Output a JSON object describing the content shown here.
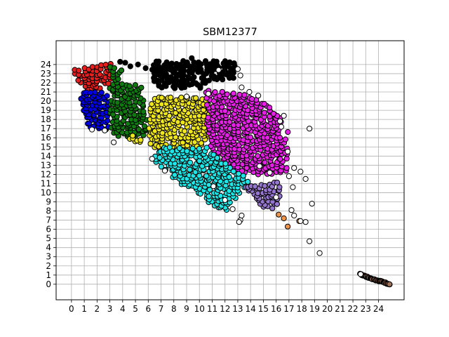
{
  "chart_data": {
    "type": "scatter",
    "title": "SBM12377",
    "xlabel": "",
    "ylabel": "",
    "xlim": [
      -1.2,
      26.0
    ],
    "ylim": [
      -1.7,
      26.6
    ],
    "x_ticks": [
      "0",
      "1",
      "2",
      "3",
      "4",
      "5",
      "6",
      "7",
      "8",
      "9",
      "10",
      "11",
      "12",
      "13",
      "14",
      "15",
      "16",
      "17",
      "18",
      "19",
      "20",
      "21",
      "22",
      "23",
      "24"
    ],
    "y_ticks": [
      "0",
      "1",
      "2",
      "3",
      "4",
      "5",
      "6",
      "7",
      "8",
      "9",
      "10",
      "11",
      "12",
      "13",
      "14",
      "15",
      "16",
      "17",
      "18",
      "19",
      "20",
      "21",
      "22",
      "23",
      "24"
    ],
    "grid": true,
    "legend": "none",
    "marker": {
      "shape": "circle",
      "edgecolor": "#000000"
    },
    "clusters": [
      {
        "color": "#000000",
        "region": [
          [
            6.2,
            24.4
          ],
          [
            12.8,
            24.4
          ],
          [
            12.8,
            22.2
          ],
          [
            10.5,
            22.2
          ],
          [
            10.5,
            21.4
          ],
          [
            6.5,
            21.4
          ]
        ],
        "extra": [
          [
            4.2,
            24.2
          ],
          [
            4.6,
            23.8
          ],
          [
            5.2,
            24.0
          ],
          [
            5.8,
            23.6
          ],
          [
            3.8,
            24.3
          ],
          [
            9.4,
            24.7
          ]
        ]
      },
      {
        "color": "#e61e1e",
        "region": [
          [
            0.0,
            23.5
          ],
          [
            3.2,
            24.1
          ],
          [
            3.2,
            21.3
          ],
          [
            0.8,
            21.3
          ]
        ]
      },
      {
        "color": "#0000e6",
        "region": [
          [
            0.5,
            21.0
          ],
          [
            3.0,
            21.0
          ],
          [
            3.0,
            16.9
          ],
          [
            1.3,
            16.9
          ]
        ]
      },
      {
        "color": "#0f7a0f",
        "region": [
          [
            3.0,
            23.8
          ],
          [
            4.0,
            23.8
          ],
          [
            4.0,
            21.8
          ],
          [
            5.5,
            21.8
          ],
          [
            6.0,
            17.0
          ],
          [
            5.6,
            16.0
          ],
          [
            3.4,
            16.2
          ],
          [
            3.0,
            17.5
          ]
        ]
      },
      {
        "color": "#f0e61e",
        "region": [
          [
            4.5,
            15.5
          ],
          [
            6.0,
            15.2
          ],
          [
            6.2,
            20.5
          ],
          [
            10.8,
            20.5
          ],
          [
            10.8,
            16.2
          ],
          [
            9.8,
            14.5
          ],
          [
            7.0,
            14.5
          ],
          [
            4.6,
            16.5
          ]
        ]
      },
      {
        "color": "#e61ee6",
        "region": [
          [
            10.5,
            21.2
          ],
          [
            13.5,
            20.8
          ],
          [
            15.0,
            20.0
          ],
          [
            16.2,
            18.5
          ],
          [
            17.0,
            16.5
          ],
          [
            16.8,
            12.2
          ],
          [
            15.0,
            11.8
          ],
          [
            12.8,
            12.2
          ],
          [
            10.8,
            14.8
          ],
          [
            10.5,
            17.5
          ]
        ]
      },
      {
        "color": "#1ee6e6",
        "region": [
          [
            6.6,
            15.0
          ],
          [
            10.6,
            15.0
          ],
          [
            12.7,
            12.5
          ],
          [
            14.0,
            11.5
          ],
          [
            13.5,
            10.5
          ],
          [
            12.2,
            8.0
          ],
          [
            11.0,
            8.6
          ],
          [
            10.0,
            9.8
          ],
          [
            8.5,
            11.0
          ],
          [
            7.5,
            12.2
          ],
          [
            6.5,
            13.5
          ]
        ]
      },
      {
        "color": "#9575cd",
        "region": [
          [
            13.5,
            10.8
          ],
          [
            16.3,
            11.2
          ],
          [
            16.4,
            9.2
          ],
          [
            16.1,
            8.1
          ],
          [
            15.0,
            8.4
          ],
          [
            14.0,
            9.8
          ]
        ]
      },
      {
        "color": "#f0964b",
        "extra": [
          [
            16.6,
            7.2
          ],
          [
            16.9,
            6.3
          ],
          [
            17.8,
            6.9
          ],
          [
            16.2,
            7.6
          ]
        ]
      },
      {
        "color": "#a0705a",
        "band": [
          [
            22.6,
            1.1
          ],
          [
            23.4,
            0.6
          ],
          [
            24.2,
            0.3
          ],
          [
            24.9,
            0.0
          ]
        ]
      },
      {
        "color": "#ffffff",
        "extra": [
          [
            2.6,
            16.8
          ],
          [
            3.3,
            15.5
          ],
          [
            1.6,
            16.9
          ],
          [
            6.3,
            13.7
          ],
          [
            7.3,
            12.4
          ],
          [
            13.2,
            7.0
          ],
          [
            13.1,
            6.8
          ],
          [
            13.3,
            7.5
          ],
          [
            16.0,
            9.5
          ],
          [
            17.2,
            8.1
          ],
          [
            17.4,
            7.5
          ],
          [
            17.9,
            6.9
          ],
          [
            18.3,
            6.8
          ],
          [
            17.3,
            10.6
          ],
          [
            17.0,
            11.8
          ],
          [
            17.4,
            12.7
          ],
          [
            17.9,
            12.3
          ],
          [
            18.3,
            11.5
          ],
          [
            18.6,
            17.0
          ],
          [
            18.8,
            8.8
          ],
          [
            18.6,
            4.7
          ],
          [
            19.4,
            3.4
          ],
          [
            22.6,
            1.1
          ],
          [
            13.0,
            23.5
          ],
          [
            13.2,
            22.8
          ],
          [
            13.3,
            21.5
          ],
          [
            13.9,
            21.0
          ],
          [
            14.6,
            20.6
          ],
          [
            16.4,
            17.2
          ],
          [
            16.6,
            18.4
          ],
          [
            16.9,
            14.5
          ],
          [
            14.7,
            12.9
          ],
          [
            15.5,
            12.2
          ],
          [
            12.0,
            9.2
          ],
          [
            12.6,
            8.2
          ],
          [
            11.1,
            10.7
          ],
          [
            11.5,
            23.4
          ],
          [
            9.0,
            20.5
          ],
          [
            10.7,
            20.8
          ],
          [
            16.3,
            17.8
          ]
        ]
      }
    ]
  }
}
